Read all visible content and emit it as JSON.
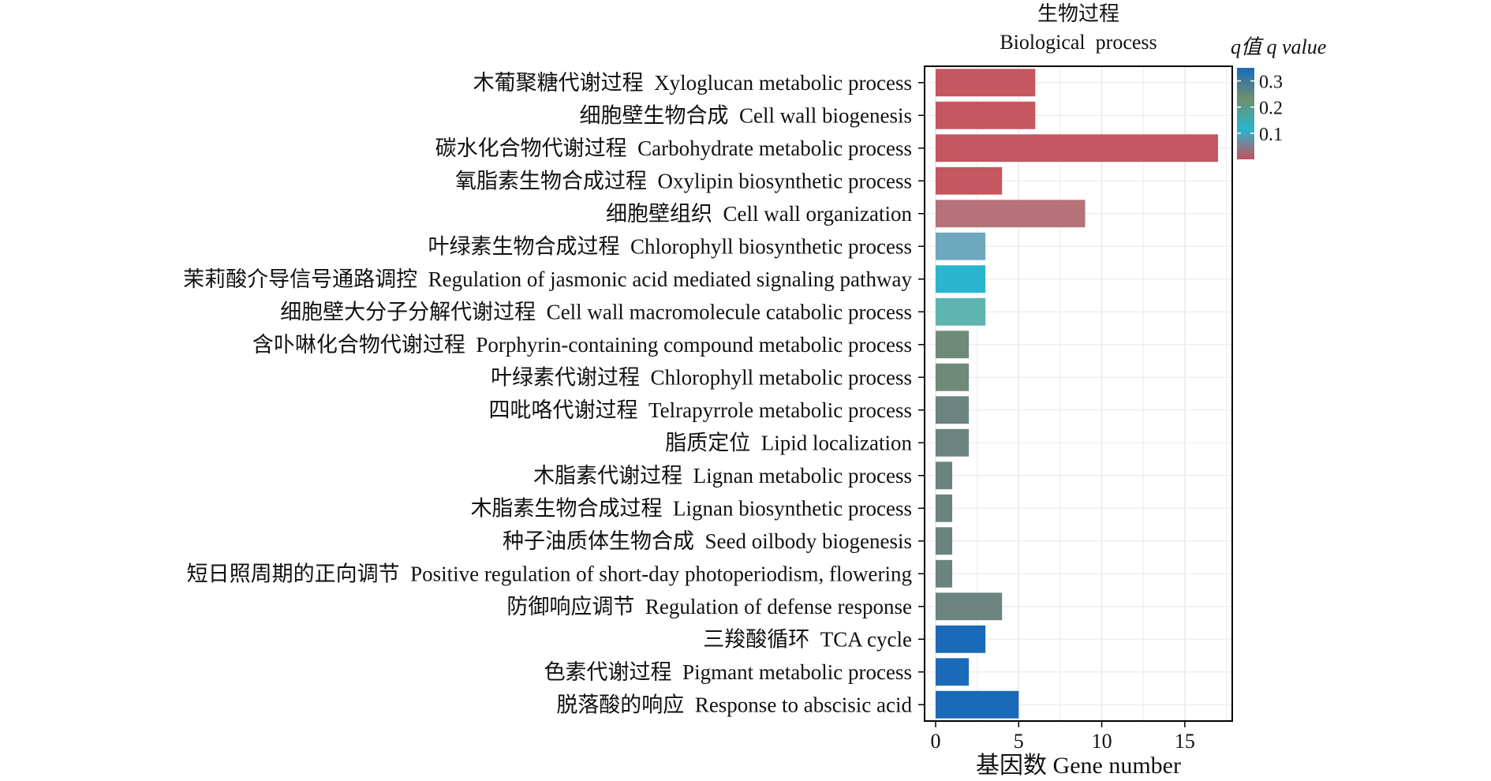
{
  "chart_data": {
    "type": "bar",
    "orientation": "horizontal",
    "title": "生物过程",
    "subtitle": "Biological  process",
    "xlabel": "基因数 Gene number",
    "ylabel": "",
    "xlim": [
      0,
      17.8
    ],
    "xticks": [
      0,
      5,
      10,
      15
    ],
    "grid": true,
    "legend": {
      "title": "q值 q value",
      "placement": "right",
      "range": [
        0.0,
        0.35
      ],
      "ticks": [
        0.3,
        0.2,
        0.1
      ],
      "gradient": [
        "#c4505e",
        "#2ab5ce",
        "#6e8f6e",
        "#1a6ab8"
      ]
    },
    "categories": [
      "木葡聚糖代谢过程  Xyloglucan metabolic process",
      "细胞壁生物合成  Cell wall biogenesis",
      "碳水化合物代谢过程  Carbohydrate metabolic process",
      "氧脂素生物合成过程  Oxylipin biosynthetic process",
      "细胞壁组织  Cell wall organization",
      "叶绿素生物合成过程  Chlorophyll biosynthetic process",
      "茉莉酸介导信号通路调控  Regulation of jasmonic acid mediated signaling pathway",
      "细胞壁大分子分解代谢过程  Cell wall macromolecule catabolic process",
      "含卟啉化合物代谢过程  Porphyrin-containing compound metabolic process",
      "叶绿素代谢过程  Chlorophyll metabolic process",
      "四吡咯代谢过程  Telrapyrrole metabolic process",
      "脂质定位  Lipid localization",
      "木脂素代谢过程  Lignan metabolic process",
      "木脂素生物合成过程  Lignan biosynthetic process",
      "种子油质体生物合成  Seed oilbody biogenesis",
      "短日照周期的正向调节  Positive regulation of short-day photoperiodism, flowering",
      "防御响应调节  Regulation of defense response",
      "三羧酸循环  TCA cycle",
      "色素代谢过程  Pigmant metabolic process",
      "脱落酸的响应  Response to abscisic acid"
    ],
    "values": [
      6,
      6,
      17,
      4,
      9,
      3,
      3,
      3,
      2,
      2,
      2,
      2,
      1,
      1,
      1,
      1,
      4,
      3,
      2,
      5
    ],
    "bar_colors": [
      "#c4575f",
      "#c4575f",
      "#c4575f",
      "#c4575f",
      "#b67279",
      "#6ea8bf",
      "#2ab5ce",
      "#5cb5b0",
      "#6e8a78",
      "#6e8a78",
      "#6b8480",
      "#6b8480",
      "#6b8480",
      "#6b8480",
      "#6b8480",
      "#6b8480",
      "#6b8480",
      "#1a6ab8",
      "#1a6ab8",
      "#1a6ab8"
    ]
  }
}
